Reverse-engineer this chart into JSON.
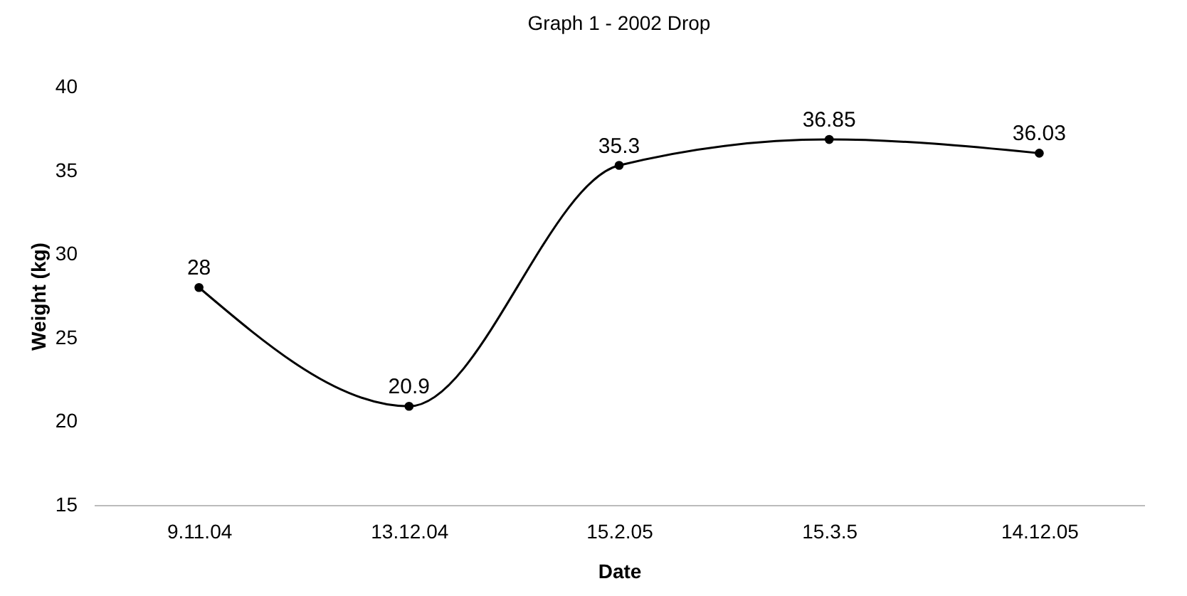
{
  "chart_data": {
    "type": "line",
    "title": "Graph 1 - 2002 Drop",
    "xlabel": "Date",
    "ylabel": "Weight (kg)",
    "categories": [
      "9.11.04",
      "13.12.04",
      "15.2.05",
      "15.3.5",
      "14.12.05"
    ],
    "series": [
      {
        "color": "#000000",
        "values": [
          28,
          20.9,
          35.3,
          36.85,
          36.03
        ]
      }
    ],
    "ylim": [
      15,
      40
    ],
    "yticks": [
      15,
      20,
      25,
      30,
      35,
      40
    ],
    "grid": false,
    "legend": false,
    "marker": "circle",
    "line_style": "solid",
    "data_labels": true
  }
}
